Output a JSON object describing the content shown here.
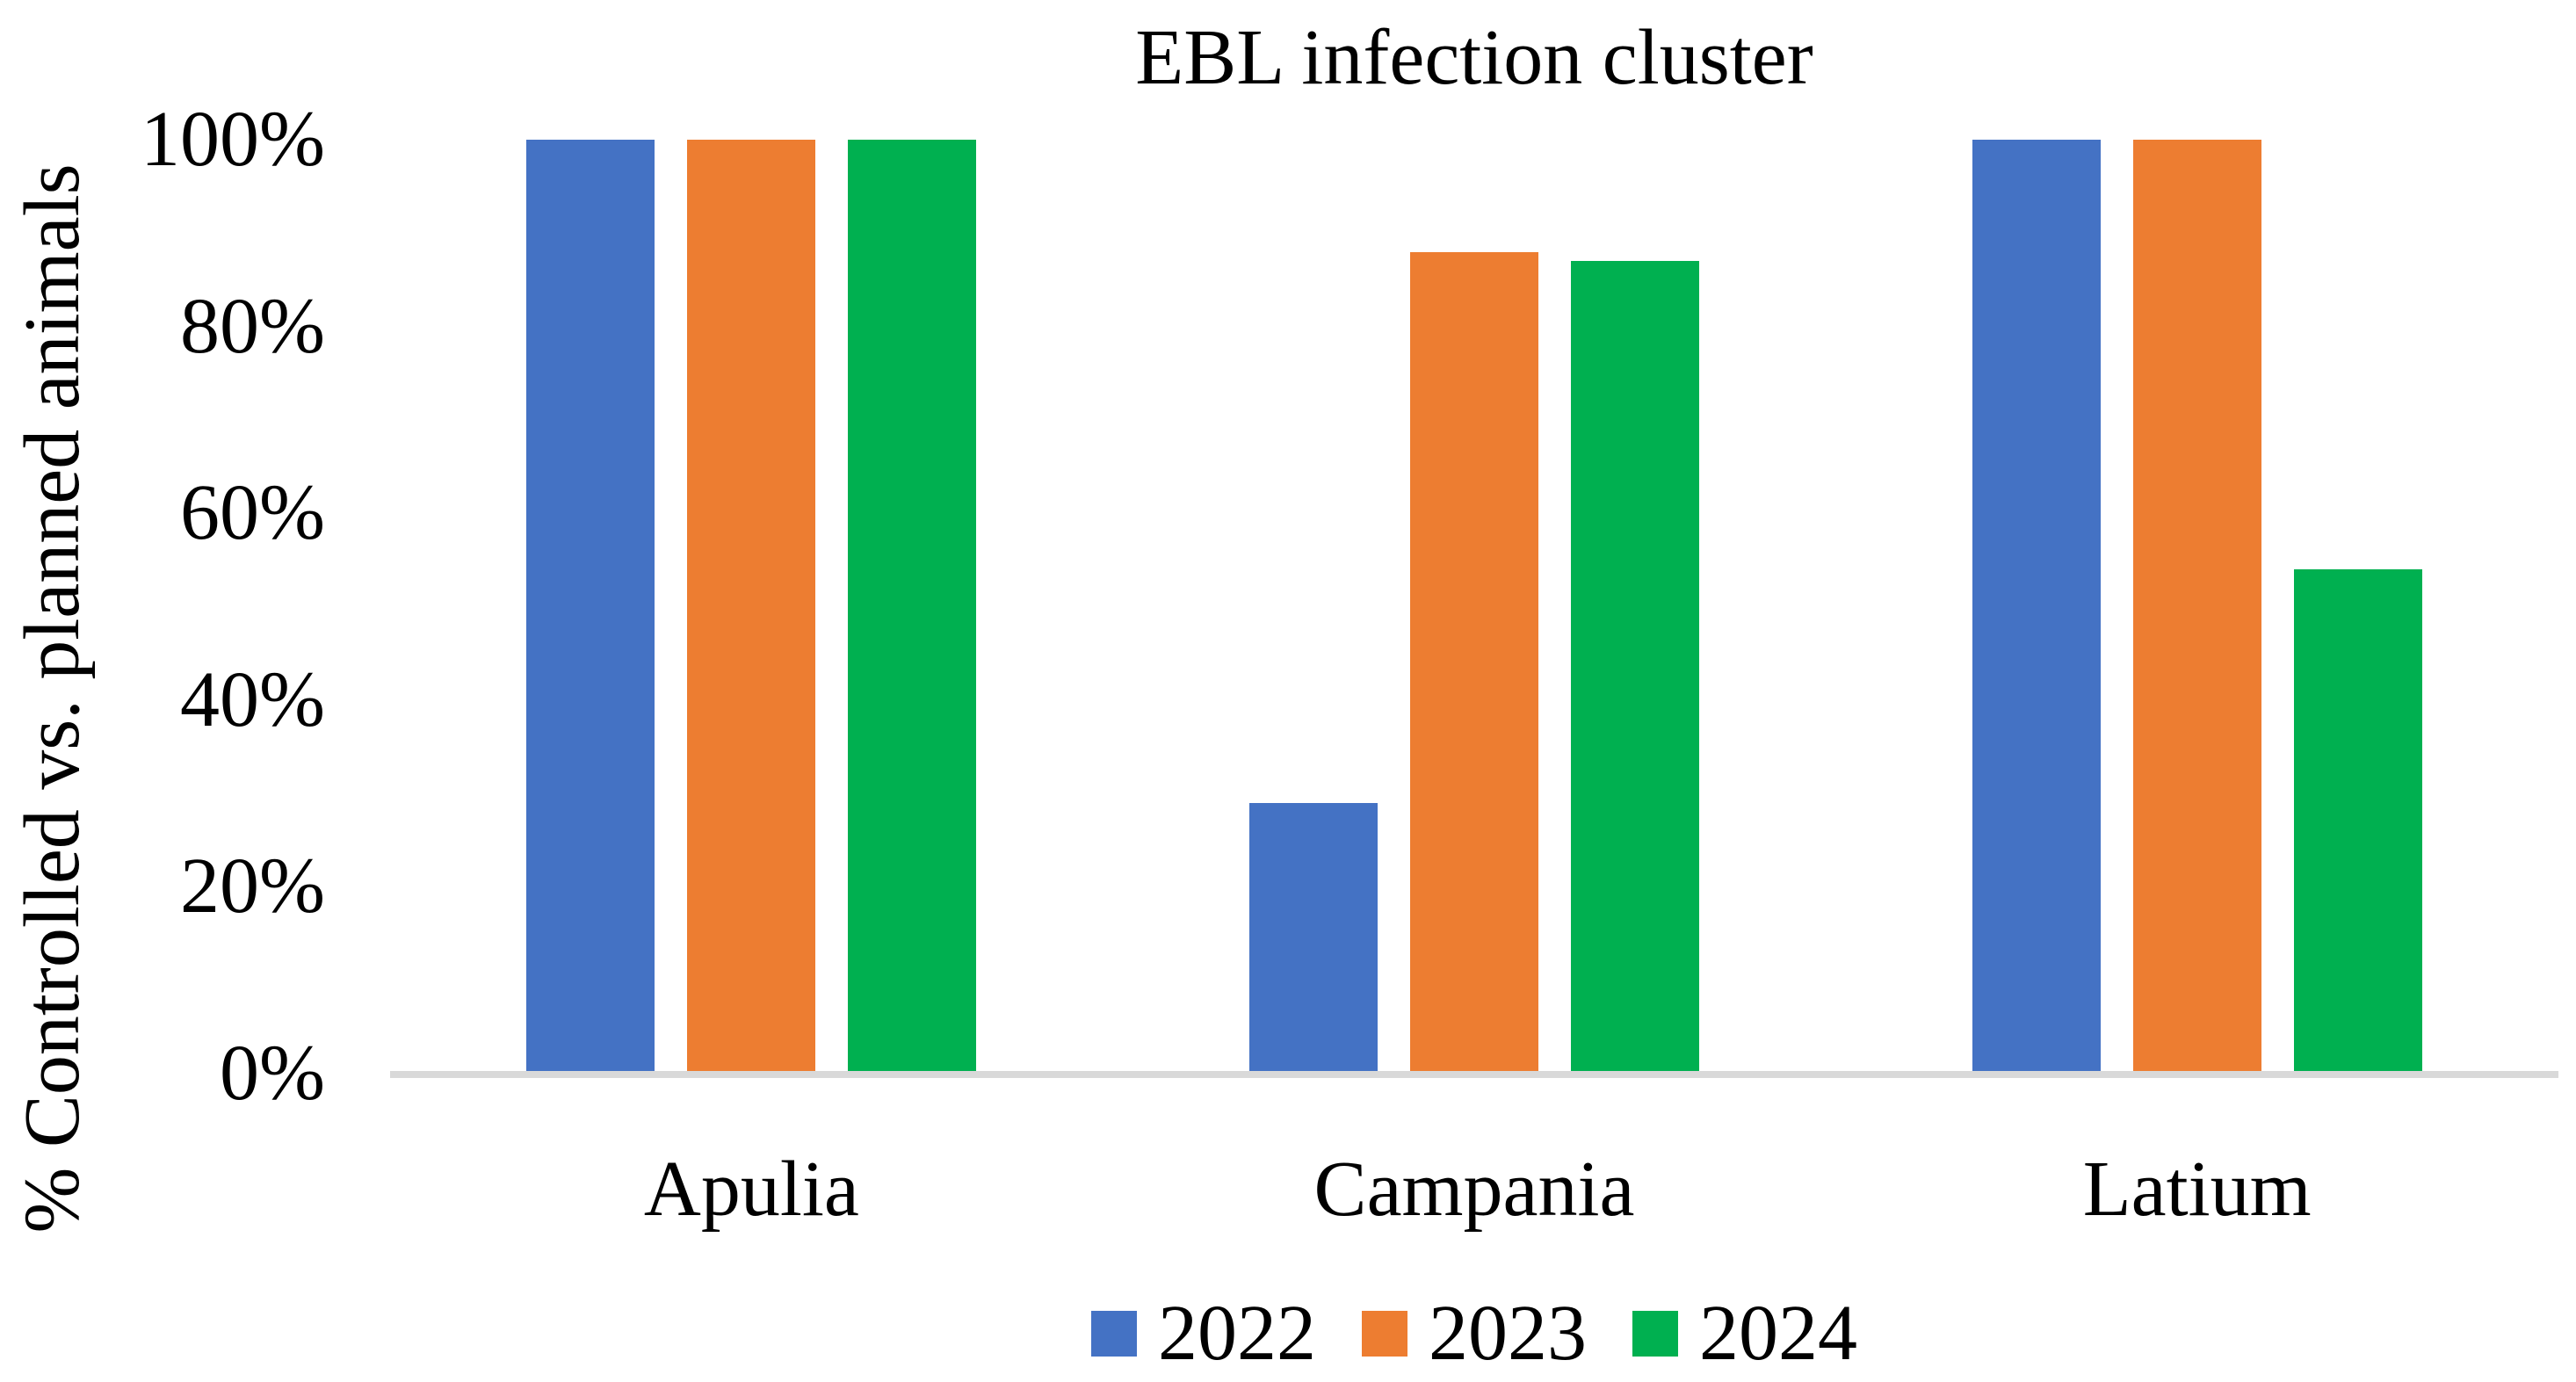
{
  "chart_data": {
    "type": "bar",
    "title": "EBL infection cluster",
    "ylabel": "% Controlled vs. planned animals",
    "categories": [
      "Apulia",
      "Campania",
      "Latium"
    ],
    "series": [
      {
        "name": "2022",
        "color": "#4472C4",
        "values": [
          100,
          29,
          100
        ]
      },
      {
        "name": "2023",
        "color": "#ED7D31",
        "values": [
          100,
          88,
          100
        ]
      },
      {
        "name": "2024",
        "color": "#00B050",
        "values": [
          100,
          87,
          54
        ]
      }
    ],
    "ylim": [
      0,
      100
    ],
    "y_ticks": [
      {
        "value": 0,
        "label": "0%"
      },
      {
        "value": 20,
        "label": "20%"
      },
      {
        "value": 40,
        "label": "40%"
      },
      {
        "value": 60,
        "label": "60%"
      },
      {
        "value": 80,
        "label": "80%"
      },
      {
        "value": 100,
        "label": "100%"
      }
    ],
    "grid": false,
    "legend_position": "bottom",
    "axis_line_color": "#D9D9D9",
    "text_color": "#000000",
    "background": "#FFFFFF"
  }
}
